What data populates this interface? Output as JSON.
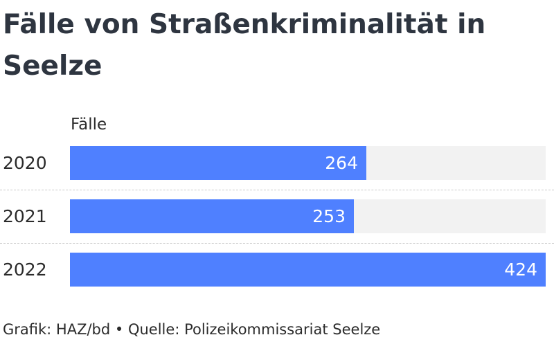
{
  "chart_data": {
    "type": "bar",
    "orientation": "horizontal",
    "title": "Fälle von Straßenkriminalität in Seelze",
    "value_header": "Fälle",
    "categories": [
      "2020",
      "2021",
      "2022"
    ],
    "values": [
      264,
      253,
      424
    ],
    "xlim": [
      0,
      424
    ],
    "grid": false,
    "legend": "none",
    "colors": {
      "bar": "#4f80ff",
      "track": "#f2f2f2",
      "title": "#2e3540",
      "value_label": "#ffffff"
    }
  },
  "footer": {
    "credit": "Grafik: HAZ/bd",
    "separator": "•",
    "source": "Quelle: Polizeikommissariat Seelze"
  }
}
